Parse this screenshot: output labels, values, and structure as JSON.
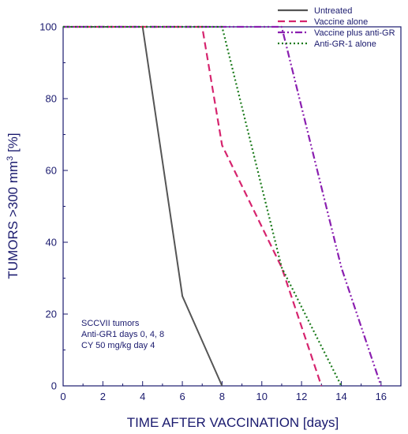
{
  "chart_data": {
    "type": "line",
    "title": "",
    "xlabel": "TIME AFTER VACCINATION [days]",
    "ylabel_main": "TUMORS >300 mm",
    "ylabel_sup": "3",
    "ylabel_tail": " [%]",
    "xlim": [
      0,
      17
    ],
    "ylim": [
      0,
      100
    ],
    "xticks": [
      0,
      2,
      4,
      6,
      8,
      10,
      12,
      14,
      16
    ],
    "yticks": [
      0,
      20,
      40,
      60,
      80,
      100
    ],
    "grid": false,
    "legend_position": "top-right",
    "series": [
      {
        "name": "Untreated",
        "color": "#555555",
        "dash": "solid",
        "x": [
          0,
          4,
          6,
          8
        ],
        "y": [
          100,
          100,
          25,
          0
        ]
      },
      {
        "name": "Vaccine alone",
        "color": "#d6246e",
        "dash": "dash",
        "x": [
          0,
          7,
          8,
          11,
          13
        ],
        "y": [
          100,
          100,
          67,
          33,
          0
        ]
      },
      {
        "name": "Vaccine plus anti-GR",
        "color": "#8a1fb0",
        "dash": "dashdot",
        "x": [
          0,
          11,
          14,
          16
        ],
        "y": [
          100,
          100,
          33,
          0
        ]
      },
      {
        "name": "Anti-GR-1 alone",
        "color": "#1a7a1a",
        "dash": "dot",
        "x": [
          0,
          8,
          11,
          14
        ],
        "y": [
          100,
          100,
          33,
          0
        ]
      }
    ],
    "annotation": [
      "SCCVII tumors",
      "Anti-GR1 days 0, 4, 8",
      "CY 50 mg/kg day 4"
    ]
  }
}
